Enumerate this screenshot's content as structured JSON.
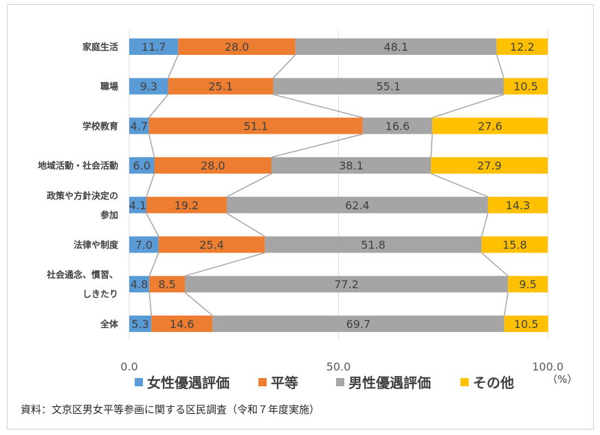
{
  "chart_data": {
    "type": "bar",
    "orientation": "horizontal",
    "stacked": true,
    "categories": [
      [
        "家庭生活"
      ],
      [
        "職場"
      ],
      [
        "学校教育"
      ],
      [
        "地域活動・社会活動"
      ],
      [
        "政策や方針決定の",
        "参加"
      ],
      [
        "法律や制度"
      ],
      [
        "社会通念、慣習、",
        "しきたり"
      ],
      [
        "全体"
      ]
    ],
    "series": [
      {
        "name": "女性優遇評価",
        "color": "#5b9bd5",
        "values": [
          11.7,
          9.3,
          4.7,
          6.0,
          4.1,
          7.0,
          4.8,
          5.3
        ],
        "labels": [
          "11.7",
          "9.3",
          "4.7",
          "6.0",
          "4.1",
          "7.0",
          "4.8",
          "5.3"
        ]
      },
      {
        "name": "平等",
        "color": "#ed7d31",
        "values": [
          28.0,
          25.1,
          51.1,
          28.0,
          19.2,
          25.4,
          8.5,
          14.6
        ],
        "labels": [
          "28.0",
          "25.1",
          "51.1",
          "28.0",
          "19.2",
          "25.4",
          "8.5",
          "14.6"
        ]
      },
      {
        "name": "男性優遇評価",
        "color": "#a5a5a5",
        "values": [
          48.1,
          55.1,
          16.6,
          38.1,
          62.4,
          51.8,
          77.2,
          69.7
        ],
        "labels": [
          "48.1",
          "55.1",
          "16.6",
          "38.1",
          "62.4",
          "51.8",
          "77.2",
          "69.7"
        ]
      },
      {
        "name": "その他",
        "color": "#ffc000",
        "values": [
          12.2,
          10.5,
          27.6,
          27.9,
          14.3,
          15.8,
          9.5,
          10.5
        ],
        "labels": [
          "12.2",
          "10.5",
          "27.6",
          "27.9",
          "14.3",
          "15.8",
          "9.5",
          "10.5"
        ]
      }
    ],
    "xlim": [
      0,
      100
    ],
    "xticks": [
      "0.0",
      "50.0",
      "100.0"
    ],
    "xunit": "（%）",
    "grid": true,
    "series_lines": true,
    "legend": "bottom",
    "source": "資料：文京区男女平等参画に関する区民調査（令和７年度実施）"
  }
}
